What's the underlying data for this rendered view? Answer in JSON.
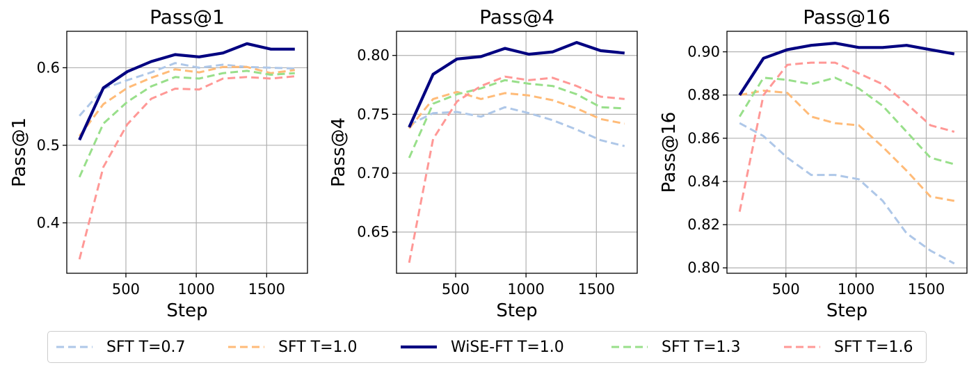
{
  "chart_data": [
    {
      "type": "line",
      "title": "Pass@1",
      "xlabel": "Step",
      "ylabel": "Pass@1",
      "xlim": [
        80,
        1790
      ],
      "ylim": [
        0.335,
        0.647
      ],
      "xticks": [
        500,
        1000,
        1500
      ],
      "yticks": [
        0.4,
        0.5,
        0.6
      ],
      "ytick_labels": [
        "0.4",
        "0.5",
        "0.6"
      ],
      "x": [
        170,
        340,
        510,
        680,
        850,
        1020,
        1190,
        1360,
        1530,
        1700
      ],
      "series": [
        {
          "name": "SFT T=0.7",
          "values": [
            0.538,
            0.573,
            0.584,
            0.594,
            0.606,
            0.6,
            0.604,
            0.601,
            0.6,
            0.599
          ]
        },
        {
          "name": "SFT T=1.0",
          "values": [
            0.512,
            0.553,
            0.574,
            0.587,
            0.598,
            0.594,
            0.601,
            0.601,
            0.593,
            0.597
          ]
        },
        {
          "name": "WiSE-FT T=1.0",
          "values": [
            0.507,
            0.574,
            0.595,
            0.608,
            0.617,
            0.614,
            0.619,
            0.631,
            0.624,
            0.624
          ]
        },
        {
          "name": "SFT T=1.3",
          "values": [
            0.459,
            0.528,
            0.556,
            0.576,
            0.588,
            0.586,
            0.593,
            0.596,
            0.591,
            0.593
          ]
        },
        {
          "name": "SFT T=1.6",
          "values": [
            0.353,
            0.472,
            0.527,
            0.56,
            0.573,
            0.572,
            0.586,
            0.588,
            0.586,
            0.589
          ]
        }
      ]
    },
    {
      "type": "line",
      "title": "Pass@4",
      "xlabel": "Step",
      "ylabel": "Pass@4",
      "xlim": [
        80,
        1790
      ],
      "ylim": [
        0.615,
        0.8205
      ],
      "xticks": [
        500,
        1000,
        1500
      ],
      "yticks": [
        0.65,
        0.7,
        0.75,
        0.8
      ],
      "ytick_labels": [
        "0.65",
        "0.70",
        "0.75",
        "0.80"
      ],
      "x": [
        170,
        340,
        510,
        680,
        850,
        1020,
        1190,
        1360,
        1530,
        1700
      ],
      "series": [
        {
          "name": "SFT T=0.7",
          "values": [
            0.741,
            0.751,
            0.752,
            0.748,
            0.756,
            0.751,
            0.745,
            0.737,
            0.728,
            0.723
          ]
        },
        {
          "name": "SFT T=1.0",
          "values": [
            0.738,
            0.763,
            0.769,
            0.763,
            0.768,
            0.766,
            0.762,
            0.755,
            0.746,
            0.742
          ]
        },
        {
          "name": "WiSE-FT T=1.0",
          "values": [
            0.739,
            0.784,
            0.797,
            0.799,
            0.806,
            0.801,
            0.803,
            0.811,
            0.804,
            0.802
          ]
        },
        {
          "name": "SFT T=1.3",
          "values": [
            0.713,
            0.759,
            0.767,
            0.772,
            0.779,
            0.776,
            0.774,
            0.767,
            0.756,
            0.755
          ]
        },
        {
          "name": "SFT T=1.6",
          "values": [
            0.624,
            0.729,
            0.761,
            0.774,
            0.782,
            0.779,
            0.781,
            0.774,
            0.765,
            0.763
          ]
        }
      ]
    },
    {
      "type": "line",
      "title": "Pass@16",
      "xlabel": "Step",
      "ylabel": "Pass@16",
      "xlim": [
        80,
        1790
      ],
      "ylim": [
        0.7975,
        0.9095
      ],
      "xticks": [
        500,
        1000,
        1500
      ],
      "yticks": [
        0.8,
        0.82,
        0.84,
        0.86,
        0.88,
        0.9
      ],
      "ytick_labels": [
        "0.80",
        "0.82",
        "0.84",
        "0.86",
        "0.88",
        "0.90"
      ],
      "x": [
        170,
        340,
        510,
        680,
        850,
        1020,
        1190,
        1360,
        1530,
        1700
      ],
      "series": [
        {
          "name": "SFT T=0.7",
          "values": [
            0.867,
            0.861,
            0.851,
            0.843,
            0.843,
            0.841,
            0.831,
            0.816,
            0.808,
            0.802
          ]
        },
        {
          "name": "SFT T=1.0",
          "values": [
            0.88,
            0.882,
            0.881,
            0.87,
            0.867,
            0.866,
            0.856,
            0.845,
            0.833,
            0.831
          ]
        },
        {
          "name": "WiSE-FT T=1.0",
          "values": [
            0.88,
            0.897,
            0.901,
            0.903,
            0.904,
            0.902,
            0.902,
            0.903,
            0.901,
            0.899
          ]
        },
        {
          "name": "SFT T=1.3",
          "values": [
            0.87,
            0.888,
            0.887,
            0.885,
            0.888,
            0.883,
            0.875,
            0.863,
            0.851,
            0.848
          ]
        },
        {
          "name": "SFT T=1.6",
          "values": [
            0.826,
            0.88,
            0.894,
            0.895,
            0.895,
            0.89,
            0.885,
            0.876,
            0.866,
            0.863
          ]
        }
      ]
    }
  ],
  "legend": {
    "placement": "bottom",
    "items": [
      {
        "label": "SFT T=0.7",
        "color": "#aec7e8",
        "style": "dashed"
      },
      {
        "label": "SFT T=1.0",
        "color": "#ffbb78",
        "style": "dashed"
      },
      {
        "label": "WiSE-FT T=1.0",
        "color": "#000080",
        "style": "solid"
      },
      {
        "label": "SFT T=1.3",
        "color": "#98df8a",
        "style": "dashed"
      },
      {
        "label": "SFT T=1.6",
        "color": "#ff9896",
        "style": "dashed"
      }
    ]
  }
}
